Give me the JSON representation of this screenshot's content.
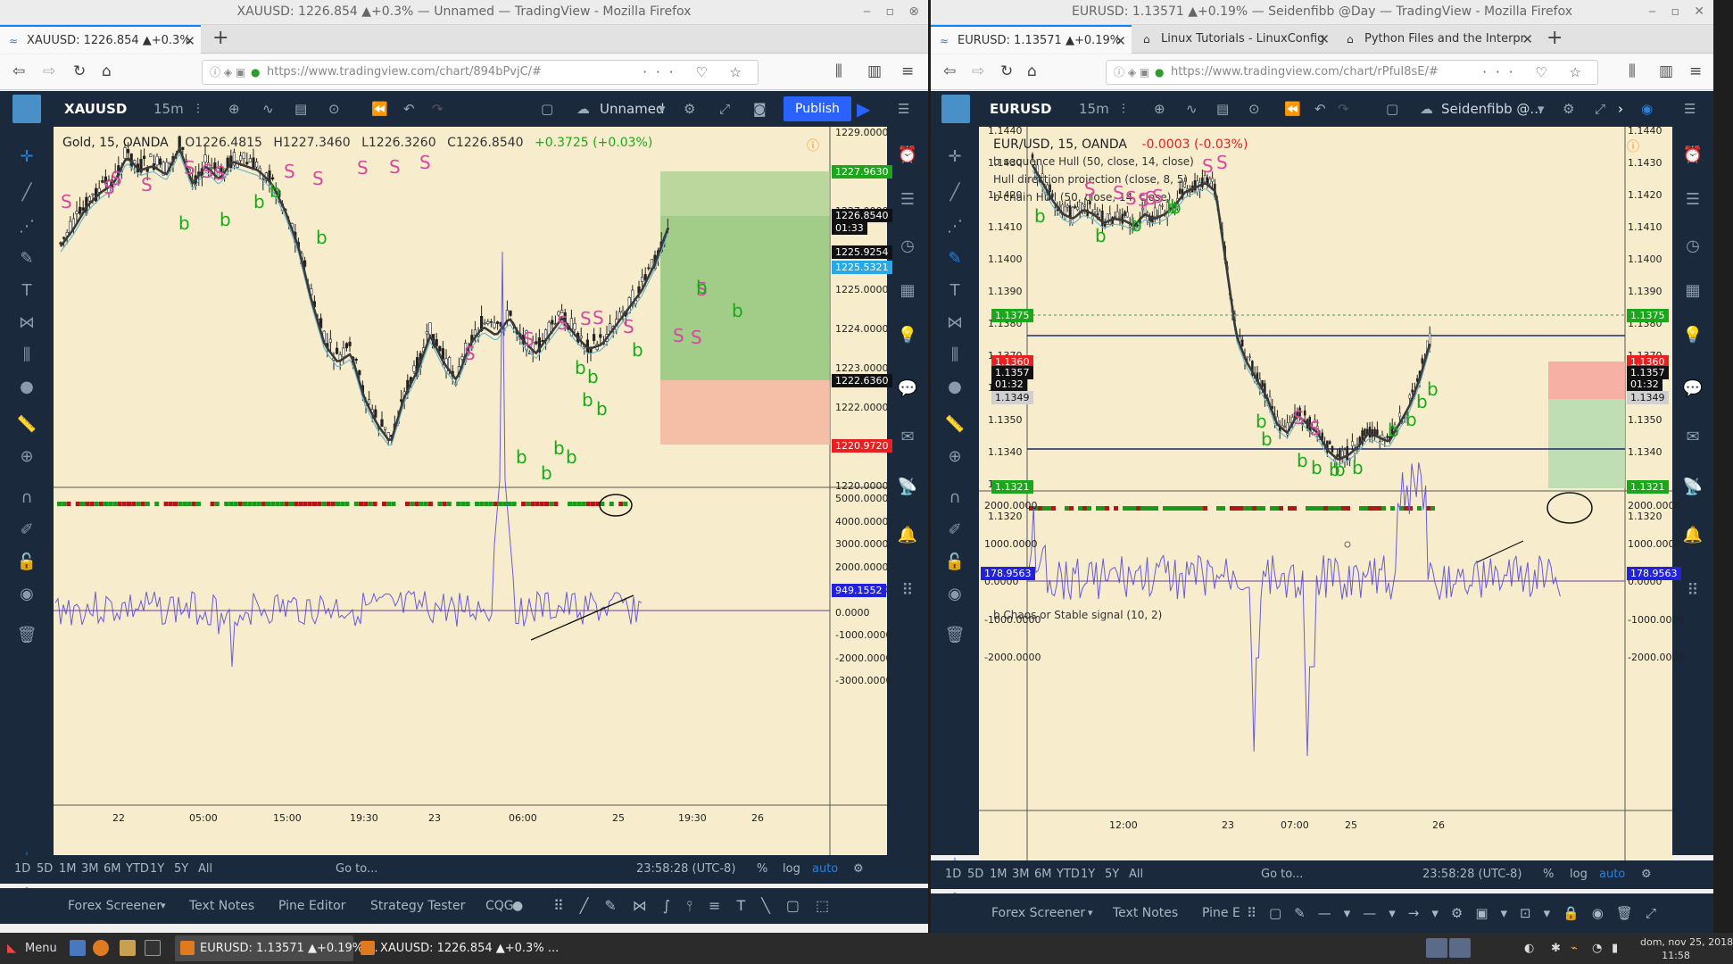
{
  "left_window": {
    "title": "XAUUSD: 1226.854 ▲+0.3% — Unnamed — TradingView - Mozilla Firefox",
    "tabs": [
      {
        "label": "XAUUSD: 1226.854 ▲+0.3%"
      }
    ],
    "url": "https://www.tradingview.com/chart/894bPvjC/#",
    "toolbar": {
      "symbol": "XAUUSD",
      "interval": "15m",
      "layout_name": "Unnamed",
      "publish_label": "Publish"
    },
    "legend": {
      "name": "Gold, 15, OANDA",
      "o": "O1226.4815",
      "h": "H1227.3460",
      "l": "L1226.3260",
      "c": "C1226.8540",
      "change": "+0.3725 (+0.03%)"
    },
    "price_axis": [
      "1229.0000",
      "1228.0000",
      "1227.0000",
      "1226.0000",
      "1225.0000",
      "1224.0000",
      "1223.0000",
      "1222.0000",
      "1221.0000",
      "1220.0000"
    ],
    "price_labels": [
      {
        "text": "1227.9630",
        "color": "#1aa81a"
      },
      {
        "text": "1226.8540",
        "color": "#111111"
      },
      {
        "text": "01:33",
        "color": "#111111"
      },
      {
        "text": "1225.9254",
        "color": "#111111"
      },
      {
        "text": "1225.5321",
        "color": "#29a8e8"
      },
      {
        "text": "1222.6360",
        "color": "#111111"
      },
      {
        "text": "1220.9720",
        "color": "#e82020"
      }
    ],
    "osc_axis": [
      "5000.0000",
      "4000.0000",
      "3000.0000",
      "2000.0000",
      "1000.0000",
      "0.0000",
      "-1000.0000",
      "-2000.0000",
      "-3000.0000"
    ],
    "osc_label": "949.1552",
    "time_axis": [
      "22",
      "05:00",
      "15:00",
      "19:30",
      "23",
      "06:00",
      "25",
      "19:30",
      "26"
    ],
    "range_buttons": [
      "1D",
      "5D",
      "1M",
      "3M",
      "6M",
      "YTD",
      "1Y",
      "5Y",
      "All"
    ],
    "goto_label": "Go to...",
    "clock": "23:58:28 (UTC-8)",
    "scale_opts": [
      "%",
      "log",
      "auto"
    ],
    "footer_tabs": [
      "Forex Screener",
      "Text Notes",
      "Pine Editor",
      "Strategy Tester",
      "CQG"
    ]
  },
  "right_window": {
    "title": "EURUSD: 1.13571 ▲+0.19% — Seidenfibb @Day — TradingView - Mozilla Firefox",
    "tabs": [
      {
        "label": "EURUSD: 1.13571 ▲+0.19%"
      },
      {
        "label": "Linux Tutorials - LinuxConfig"
      },
      {
        "label": "Python Files and the Interpr"
      }
    ],
    "url": "https://www.tradingview.com/chart/rPfuI8sE/#",
    "toolbar": {
      "symbol": "EURUSD",
      "interval": "15m",
      "layout_name": "Seidenfibb @..."
    },
    "legend": {
      "name": "EUR/USD, 15, OANDA",
      "change": "-0.0003 (-0.03%)",
      "ind1": "b sequence Hull (50, close, 14, close)",
      "ind2": "Hull direction projection (close, 8, 5)",
      "ind3": "b chain Hull (50, close, 14, close)",
      "osc": "b Chaos or Stable signal (10, 2)"
    },
    "price_axis": [
      "1.1440",
      "1.1430",
      "1.1420",
      "1.1410",
      "1.1400",
      "1.1390",
      "1.1380",
      "1.1370",
      "1.1360",
      "1.1350",
      "1.1340",
      "1.1330",
      "1.1320"
    ],
    "price_labels": [
      {
        "text": "1.1375",
        "color": "#1aa81a"
      },
      {
        "text": "1.1360",
        "color": "#e82020"
      },
      {
        "text": "1.1357",
        "color": "#111111"
      },
      {
        "text": "01:32",
        "color": "#111111"
      },
      {
        "text": "1.1349",
        "color": "#d0d0d0"
      },
      {
        "text": "1.1321",
        "color": "#1aa81a"
      }
    ],
    "osc_axis": [
      "2000.0000",
      "1000.0000",
      "0.0000",
      "-1000.0000",
      "-2000.0000"
    ],
    "osc_label": "178.9563",
    "time_axis": [
      "12:00",
      "23",
      "07:00",
      "25",
      "26"
    ],
    "range_buttons": [
      "1D",
      "5D",
      "1M",
      "3M",
      "6M",
      "YTD",
      "1Y",
      "5Y",
      "All"
    ],
    "goto_label": "Go to...",
    "clock": "23:58:28 (UTC-8)",
    "scale_opts": [
      "%",
      "log",
      "auto"
    ],
    "footer_tabs": [
      "Forex Screener",
      "Text Notes",
      "Pine E"
    ]
  },
  "taskbar": {
    "menu_label": "Menu",
    "items": [
      {
        "label": "EURUSD: 1.13571 ▲+0.19% ..."
      },
      {
        "label": "XAUUSD: 1226.854 ▲+0.3% ..."
      }
    ],
    "date": "dom, nov 25, 2018",
    "time": "11:58"
  },
  "colors": {
    "chart_bg": "#f7edcd",
    "tv_dark": "#1a2a3c",
    "buy": "#1aa81a",
    "sell": "#d44a9e",
    "publish": "#2962ff"
  }
}
